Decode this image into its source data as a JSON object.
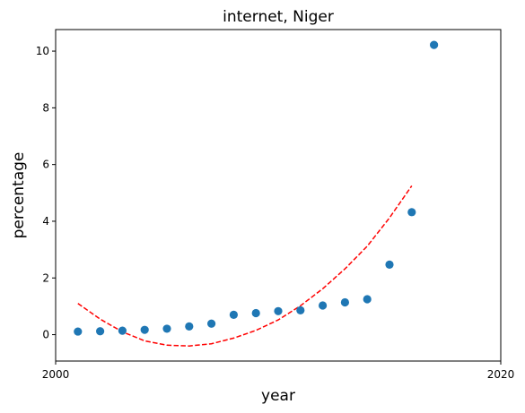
{
  "chart_data": {
    "type": "scatter",
    "title": "internet, Niger",
    "xlabel": "year",
    "ylabel": "percentage",
    "xlim": [
      2000,
      2020
    ],
    "ylim": [
      -0.93,
      10.76
    ],
    "xticks": [
      2000,
      2020
    ],
    "yticks": [
      0,
      2,
      4,
      6,
      8,
      10
    ],
    "grid": false,
    "points": {
      "x": [
        2001,
        2002,
        2003,
        2004,
        2005,
        2006,
        2007,
        2008,
        2009,
        2010,
        2011,
        2012,
        2013,
        2014,
        2015,
        2016,
        2017
      ],
      "y": [
        0.11,
        0.12,
        0.14,
        0.17,
        0.21,
        0.29,
        0.39,
        0.7,
        0.76,
        0.83,
        0.86,
        1.03,
        1.14,
        1.25,
        2.47,
        4.32,
        10.22
      ],
      "color": "#1f77b4"
    },
    "fit": {
      "x": [
        2001,
        2002,
        2003,
        2004,
        2005,
        2006,
        2007,
        2008,
        2009,
        2010,
        2011,
        2012,
        2013,
        2014,
        2015,
        2016
      ],
      "y": [
        1.1,
        0.55,
        0.1,
        -0.22,
        -0.37,
        -0.4,
        -0.32,
        -0.12,
        0.15,
        0.52,
        1.02,
        1.62,
        2.32,
        3.12,
        4.12,
        5.25
      ],
      "color": "#ff0000",
      "style": "dashed"
    }
  }
}
